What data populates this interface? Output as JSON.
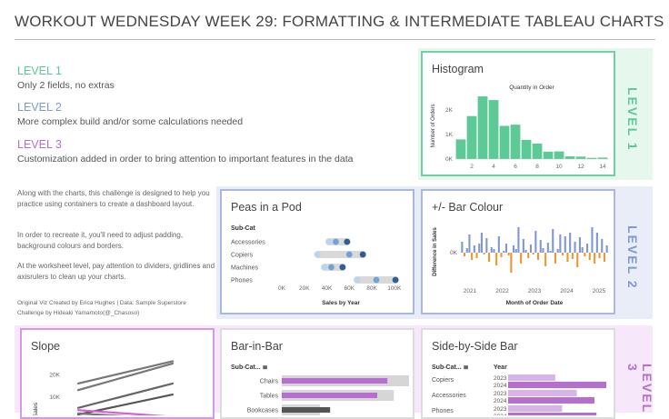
{
  "header": {
    "title": "WORKOUT WEDNESDAY WEEK 29: FORMATTING & INTERMEDIATE TABLEAU CHARTS"
  },
  "colors": {
    "level1": "#5dc996",
    "level2": "#7f97d2",
    "level3": "#b66fcf"
  },
  "levels": [
    {
      "heading": "LEVEL 1",
      "description": "Only 2 fields, no extras"
    },
    {
      "heading": "LEVEL 2",
      "description": "More complex build and/or some calculations needed"
    },
    {
      "heading": "LEVEL 3",
      "description": "Customization added in order to bring attention to important features in the data"
    }
  ],
  "intro": {
    "p1": "Along with the charts, this challenge is designed to help you practice using containers to create a dashboard layout.",
    "p2": "In order to recreate it, you'll need to adjust padding, background colours and borders.",
    "p3": "At the worksheet level, pay attention to dividers, gridlines and axisrulers to clean up your charts.",
    "credit1": "Original Viz Created by Erica Hughes | Data: Sample Superstore",
    "credit2": "Challenge by Hideaki Yamamoto(@_Chasoso)"
  },
  "bands": {
    "level1": "LEVEL 1",
    "level2": "LEVEL 2",
    "level3": "LEVEL 3"
  },
  "histogram": {
    "title": "Histogram",
    "chart_data": {
      "type": "bar",
      "title": "Quantity in Order",
      "ylabel": "Number of Orders",
      "categories": [
        1,
        2,
        3,
        4,
        5,
        6,
        7,
        8,
        9,
        10,
        11,
        12,
        13,
        14
      ],
      "values": [
        800,
        1750,
        2550,
        2400,
        1350,
        1400,
        780,
        630,
        300,
        310,
        110,
        100,
        50,
        60
      ],
      "ylim": [
        0,
        2700
      ],
      "yticks": [
        "0K",
        "1K",
        "2K"
      ],
      "xticks": [
        "2",
        "4",
        "6",
        "8",
        "10",
        "12",
        "14"
      ]
    }
  },
  "peas": {
    "title": "Peas in a Pod",
    "chart_data": {
      "type": "scatter",
      "header": "Sub-Cat",
      "xlabel": "Sales by Year",
      "categories": [
        "Accessories",
        "Copiers",
        "Machines",
        "Phones"
      ],
      "series": [
        {
          "name": "light",
          "values": [
            42000,
            32000,
            38000,
            67000
          ]
        },
        {
          "name": "mid",
          "values": [
            48000,
            60000,
            44000,
            84000
          ]
        },
        {
          "name": "dark",
          "values": [
            58000,
            72000,
            54000,
            101000
          ]
        }
      ],
      "xlim": [
        0,
        105000
      ],
      "xticks": [
        "0K",
        "20K",
        "40K",
        "60K",
        "80K",
        "100K"
      ]
    }
  },
  "barcolour": {
    "title": "+/- Bar Colour",
    "chart_data": {
      "type": "bar",
      "ylabel": "Difference in Sales",
      "xlabel": "Month of Order Date",
      "values": [
        12,
        -4,
        5,
        20,
        -8,
        8,
        -6,
        10,
        22,
        -2,
        16,
        -10,
        6,
        4,
        -14,
        18,
        -5,
        2,
        10,
        -3,
        -22,
        8,
        4,
        28,
        -12,
        15,
        3,
        -6,
        9,
        -2,
        24,
        -8,
        14,
        5,
        -15,
        11,
        2,
        26,
        -12,
        4,
        20,
        -3,
        18,
        -10,
        22,
        -7,
        12,
        -16,
        17,
        6,
        -4,
        10,
        -8,
        28,
        -12,
        22,
        -6,
        15,
        -10,
        8
      ],
      "ylim": [
        -30,
        32
      ],
      "yticks": [
        "0K"
      ],
      "xticks": [
        "2021",
        "2022",
        "2023",
        "2024",
        "2025"
      ]
    }
  },
  "slope": {
    "title": "Slope",
    "chart_data": {
      "type": "line",
      "ylabel": "Sales",
      "yticks": [
        "20K",
        "10K"
      ],
      "ylim": [
        0,
        27000
      ],
      "series": [
        {
          "name": "a",
          "start": 16000,
          "end": 26000
        },
        {
          "name": "b",
          "start": 13000,
          "end": 25000
        },
        {
          "name": "c",
          "start": 5000,
          "end": 16000
        },
        {
          "name": "d",
          "start": 2000,
          "end": 11000
        },
        {
          "name": "e",
          "start": 2500,
          "end": 0
        },
        {
          "name": "highlight",
          "start": 4000,
          "end": 1000
        }
      ]
    }
  },
  "barinbar": {
    "title": "Bar-in-Bar",
    "chart_data": {
      "type": "bar",
      "header": "Sub-Cat...",
      "categories": [
        "Chairs",
        "Tables",
        "Bookcases"
      ],
      "series": [
        {
          "name": "background",
          "values": [
            100,
            88,
            30
          ]
        },
        {
          "name": "foreground",
          "values": [
            83,
            75,
            38
          ]
        }
      ],
      "xlim": [
        0,
        100
      ]
    }
  },
  "sidebyside": {
    "title": "Side-by-Side Bar",
    "chart_data": {
      "type": "bar",
      "header": "Sub-Cat...",
      "year_header": "Year",
      "groups": [
        {
          "name": "Copiers",
          "years": [
            "2023",
            "2024"
          ],
          "values": [
            48,
            100
          ]
        },
        {
          "name": "Accessories",
          "years": [
            "2023",
            "2024"
          ],
          "values": [
            70,
            88
          ]
        },
        {
          "name": "Phones",
          "years": [
            "2023",
            "2024"
          ],
          "values": [
            55,
            90
          ]
        }
      ]
    }
  }
}
